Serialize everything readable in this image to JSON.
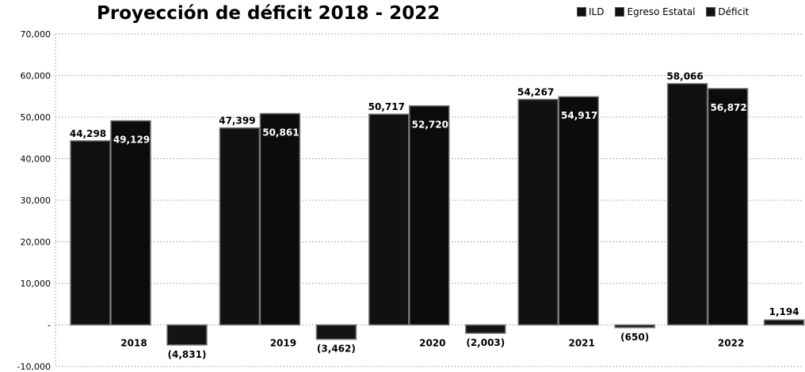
{
  "chart_data": {
    "type": "bar",
    "title": "Proyección de déficit 2018 - 2022",
    "categories": [
      "2018",
      "2019",
      "2020",
      "2021",
      "2022"
    ],
    "series": [
      {
        "name": "ILD",
        "values": [
          44298,
          47399,
          50717,
          54267,
          58066
        ],
        "labels": [
          "44,298",
          "47,399",
          "50,717",
          "54,267",
          "58,066"
        ]
      },
      {
        "name": "Egreso Estatal",
        "values": [
          49129,
          50861,
          52720,
          54917,
          56872
        ],
        "labels": [
          "49,129",
          "50,861",
          "52,720",
          "54,917",
          "56,872"
        ]
      },
      {
        "name": "Déficit",
        "values": [
          -4831,
          -3462,
          -2003,
          -650,
          1194
        ],
        "labels": [
          "(4,831)",
          "(3,462)",
          "(2,003)",
          "(650)",
          "1,194"
        ]
      }
    ],
    "ylim": [
      -10000,
      70000
    ],
    "yticks": [
      {
        "value": 70000,
        "label": "70,000"
      },
      {
        "value": 60000,
        "label": "60,000"
      },
      {
        "value": 50000,
        "label": "50,000"
      },
      {
        "value": 40000,
        "label": "40,000"
      },
      {
        "value": 30000,
        "label": "30,000"
      },
      {
        "value": 20000,
        "label": "20,000"
      },
      {
        "value": 10000,
        "label": "10,000"
      },
      {
        "value": 0,
        "label": "-"
      },
      {
        "value": -10000,
        "label": "-10,000"
      }
    ],
    "grid": true,
    "legend_position": "top-right",
    "colors": {
      "ILD": "#111111",
      "Egreso Estatal": "#0c0c0c",
      "Déficit": "#141414"
    }
  }
}
